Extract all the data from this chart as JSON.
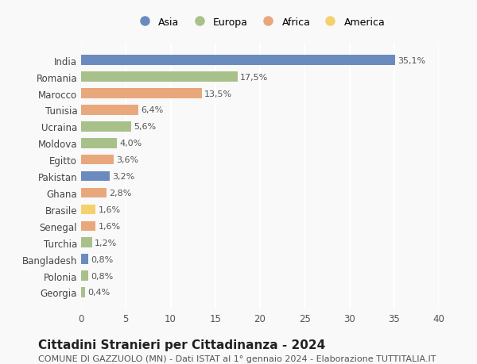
{
  "countries": [
    "India",
    "Romania",
    "Marocco",
    "Tunisia",
    "Ucraina",
    "Moldova",
    "Egitto",
    "Pakistan",
    "Ghana",
    "Brasile",
    "Senegal",
    "Turchia",
    "Bangladesh",
    "Polonia",
    "Georgia"
  ],
  "values": [
    35.1,
    17.5,
    13.5,
    6.4,
    5.6,
    4.0,
    3.6,
    3.2,
    2.8,
    1.6,
    1.6,
    1.2,
    0.8,
    0.8,
    0.4
  ],
  "labels": [
    "35,1%",
    "17,5%",
    "13,5%",
    "6,4%",
    "5,6%",
    "4,0%",
    "3,6%",
    "3,2%",
    "2,8%",
    "1,6%",
    "1,6%",
    "1,2%",
    "0,8%",
    "0,8%",
    "0,4%"
  ],
  "continents": [
    "Asia",
    "Europa",
    "Africa",
    "Africa",
    "Europa",
    "Europa",
    "Africa",
    "Asia",
    "Africa",
    "America",
    "Africa",
    "Europa",
    "Asia",
    "Europa",
    "Europa"
  ],
  "continent_colors": {
    "Asia": "#6b8bbf",
    "Europa": "#a8c08a",
    "Africa": "#e8a87c",
    "America": "#f5d06e"
  },
  "legend_order": [
    "Asia",
    "Europa",
    "Africa",
    "America"
  ],
  "title": "Cittadini Stranieri per Cittadinanza - 2024",
  "subtitle": "COMUNE DI GAZZUOLO (MN) - Dati ISTAT al 1° gennaio 2024 - Elaborazione TUTTITALIA.IT",
  "xlim": [
    0,
    40
  ],
  "xticks": [
    0,
    5,
    10,
    15,
    20,
    25,
    30,
    35,
    40
  ],
  "background_color": "#f9f9f9",
  "grid_color": "#ffffff",
  "bar_height": 0.6,
  "title_fontsize": 11,
  "subtitle_fontsize": 8,
  "tick_fontsize": 8.5,
  "label_fontsize": 8
}
